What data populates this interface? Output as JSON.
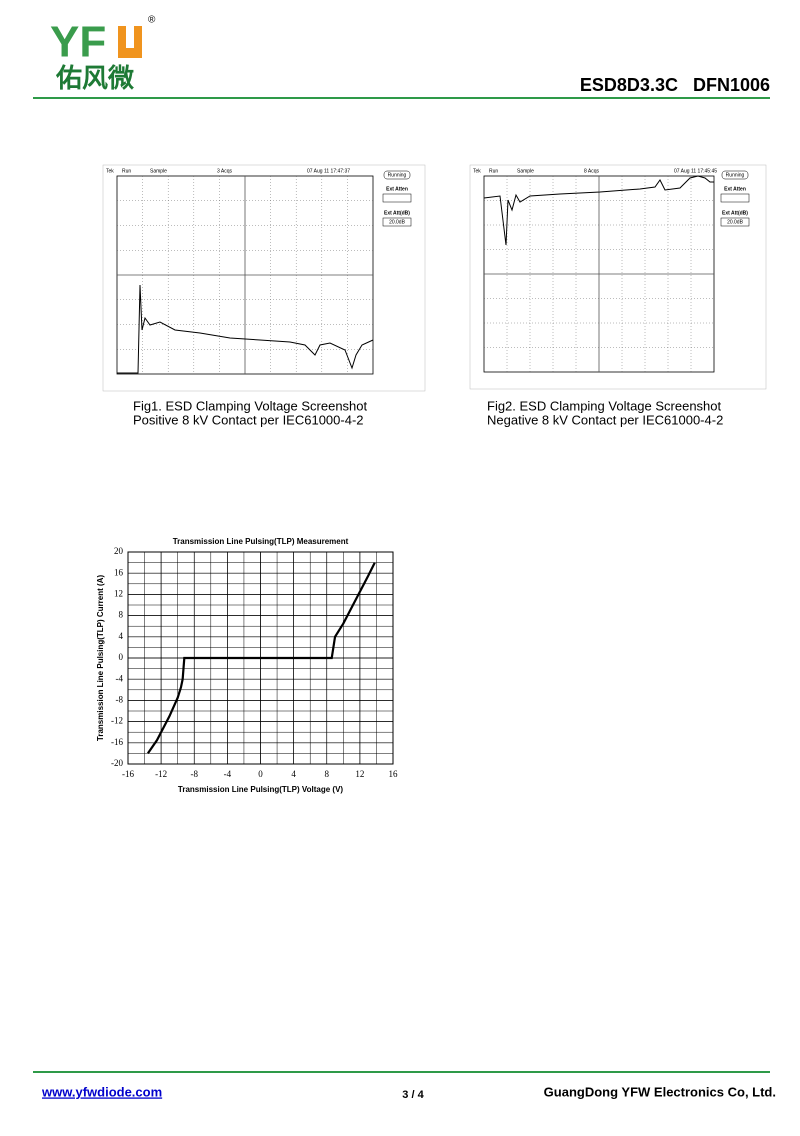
{
  "header": {
    "logo_letters": "YF",
    "logo_mark": "®",
    "logo_chinese": "佑风微",
    "part": "ESD8D3.3C   DFN1006"
  },
  "figures": [
    {
      "screen": {
        "status": [
          "Tek",
          "Run",
          "Sample",
          "3 Acqs",
          "07 Aug 11 17:47:37"
        ],
        "button": "Running",
        "panel": [
          "Ext Atten",
          "Ext Att(dB)",
          "20.0dB"
        ]
      },
      "caption": [
        "Fig1. ESD Clamping Voltage Screenshot",
        "Positive 8 kV Contact per IEC61000-4-2"
      ]
    },
    {
      "screen": {
        "status": [
          "Tek",
          "Run",
          "Sample",
          "8 Acqs",
          "07 Aug 11 17:45:45"
        ],
        "button": "Running",
        "panel": [
          "Ext Atten",
          "Ext Att(dB)",
          "20.0dB"
        ]
      },
      "caption": [
        "Fig2. ESD Clamping Voltage Screenshot",
        "Negative 8 kV Contact per IEC61000-4-2"
      ]
    }
  ],
  "chart_data": {
    "type": "line",
    "title": "Transmission Line Pulsing(TLP) Measurement",
    "xlabel": "Transmission Line Pulsing(TLP) Voltage (V)",
    "ylabel": "Transmission Line Pulsing(TLP) Current (A)",
    "x": [
      -13.6,
      -12.5,
      -11,
      -10,
      -9.6,
      -9.4,
      -9.3,
      -9.2,
      0,
      8.6,
      8.8,
      9.0,
      10,
      11,
      12,
      13,
      13.8
    ],
    "series": [
      {
        "name": "TLP",
        "color": "#000000",
        "values": [
          -18,
          -15.5,
          -11,
          -7.5,
          -5.5,
          -4,
          -2,
          0,
          0,
          0,
          2,
          4,
          6.5,
          9.5,
          12.5,
          15.5,
          18
        ]
      }
    ],
    "xlim": [
      -16,
      16
    ],
    "ylim": [
      -20,
      20
    ],
    "xticks": [
      -16,
      -12,
      -8,
      -4,
      0,
      4,
      8,
      12,
      16
    ],
    "yticks": [
      -20,
      -16,
      -12,
      -8,
      -4,
      0,
      4,
      8,
      12,
      16,
      20
    ],
    "xminor": 2,
    "yminor": 2,
    "grid": true
  },
  "footer": {
    "url": "www.yfwdiode.com",
    "page": "3 / 4",
    "company": "GuangDong YFW Electronics Co, Ltd."
  }
}
